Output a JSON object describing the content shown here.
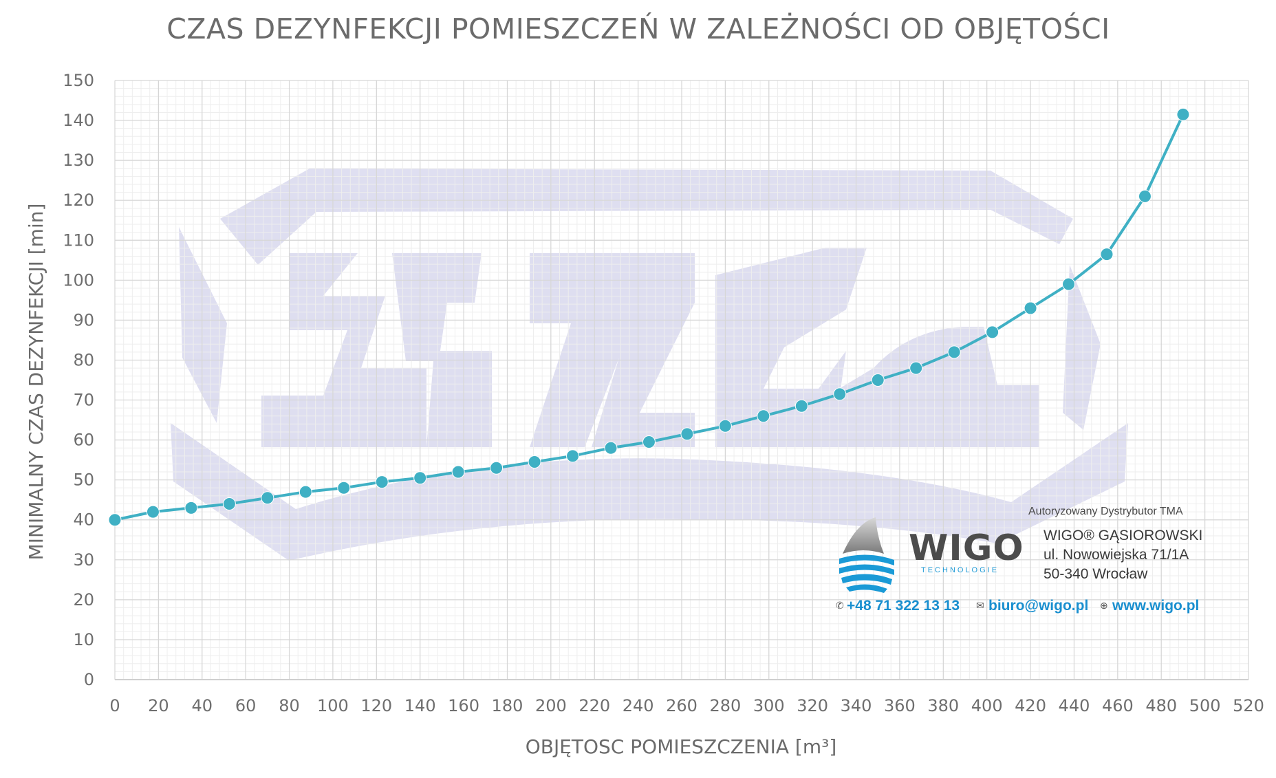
{
  "chart_data": {
    "type": "line",
    "title": "CZAS DEZYNFEKCJI POMIESZCZEŃ W ZALEŻNOŚCI OD OBJĘTOŚCI",
    "xlabel": "OBJĘTOSC POMIESZCZENIA [m³]",
    "ylabel": "MINIMALNY CZAS DEZYNFEKCJI [min]",
    "xlim": [
      0,
      520
    ],
    "ylim": [
      0,
      150
    ],
    "xticks": [
      0,
      20,
      40,
      60,
      80,
      100,
      120,
      140,
      160,
      180,
      200,
      220,
      240,
      260,
      280,
      300,
      320,
      340,
      360,
      380,
      400,
      420,
      440,
      460,
      480,
      500,
      520
    ],
    "yticks": [
      0,
      10,
      20,
      30,
      40,
      50,
      60,
      70,
      80,
      90,
      100,
      110,
      120,
      130,
      140,
      150
    ],
    "grid": true,
    "color": "#3fb0c4",
    "series": [
      {
        "x": [
          0,
          17.5,
          35,
          52.5,
          70,
          87.5,
          105,
          122.5,
          140,
          157.5,
          175,
          192.5,
          210,
          227.5,
          245,
          262.5,
          280,
          297.5,
          315,
          332.5,
          350,
          367.5,
          385,
          402.5,
          420,
          437.5,
          455,
          472.5,
          490
        ],
        "values": [
          40,
          42,
          43,
          44,
          45.5,
          47,
          48,
          49.5,
          50.5,
          52,
          53,
          54.5,
          56,
          58,
          59.5,
          61.5,
          63.5,
          66,
          68.5,
          71.5,
          75,
          78,
          82,
          87,
          93,
          99,
          106.5,
          121,
          141.5
        ]
      }
    ]
  },
  "logo": {
    "distributor": "Autoryzowany Dystrybutor TMA",
    "brand": "WIGO",
    "brand_sub": "TECHNOLOGIE",
    "company": "WIGO® GĄSIOROWSKI",
    "street": "ul. Nowowiejska 71/1A",
    "city": "50-340 Wrocław",
    "phone": "+48 71 322 13 13",
    "email": "biuro@wigo.pl",
    "web": "www.wigo.pl",
    "accent": "#1a8fcf"
  },
  "watermark": {
    "color": "#d9d9ee"
  }
}
